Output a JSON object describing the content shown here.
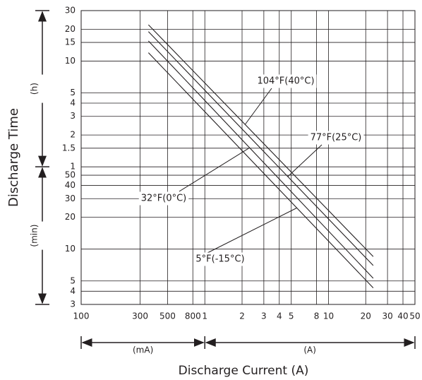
{
  "chart_data": {
    "type": "line",
    "x_label": "Discharge Current (A)",
    "y_label": "Discharge Time",
    "x_unit_labels": [
      "(mA)",
      "(A)"
    ],
    "y_unit_labels": [
      "(h)",
      "(min)"
    ],
    "log_x": true,
    "log_y": true,
    "grid": true,
    "x": [
      0.35,
      23
    ],
    "series": [
      {
        "name": "104°F(40°C)",
        "color": "#231f20",
        "values": [
          1320,
          8.5
        ]
      },
      {
        "name": "77°F(25°C)",
        "color": "#231f20",
        "values": [
          1140,
          7
        ]
      },
      {
        "name": "32°F(0°C)",
        "color": "#231f20",
        "values": [
          930,
          5.3
        ]
      },
      {
        "name": "5°F(-15°C)",
        "color": "#231f20",
        "values": [
          720,
          4.3
        ]
      }
    ],
    "xlim": [
      0.1,
      50
    ],
    "xticks": [
      {
        "value": 0.1,
        "label": "100"
      },
      {
        "value": 0.3,
        "label": "300"
      },
      {
        "value": 0.5,
        "label": "500"
      },
      {
        "value": 0.8,
        "label": "800"
      },
      1,
      2,
      3,
      4,
      5,
      8,
      10,
      20,
      30,
      40,
      50
    ],
    "ylim": [
      3,
      1800
    ],
    "yticks": [
      {
        "value": 1800,
        "label": "30"
      },
      {
        "value": 1200,
        "label": "20"
      },
      {
        "value": 900,
        "label": "15"
      },
      {
        "value": 600,
        "label": "10"
      },
      {
        "value": 300,
        "label": "5"
      },
      {
        "value": 240,
        "label": "4"
      },
      {
        "value": 180,
        "label": "3"
      },
      {
        "value": 120,
        "label": "2"
      },
      {
        "value": 90,
        "label": "1.5"
      },
      {
        "value": 60,
        "label": "1"
      },
      50,
      40,
      30,
      20,
      10,
      5,
      4,
      3
    ]
  }
}
